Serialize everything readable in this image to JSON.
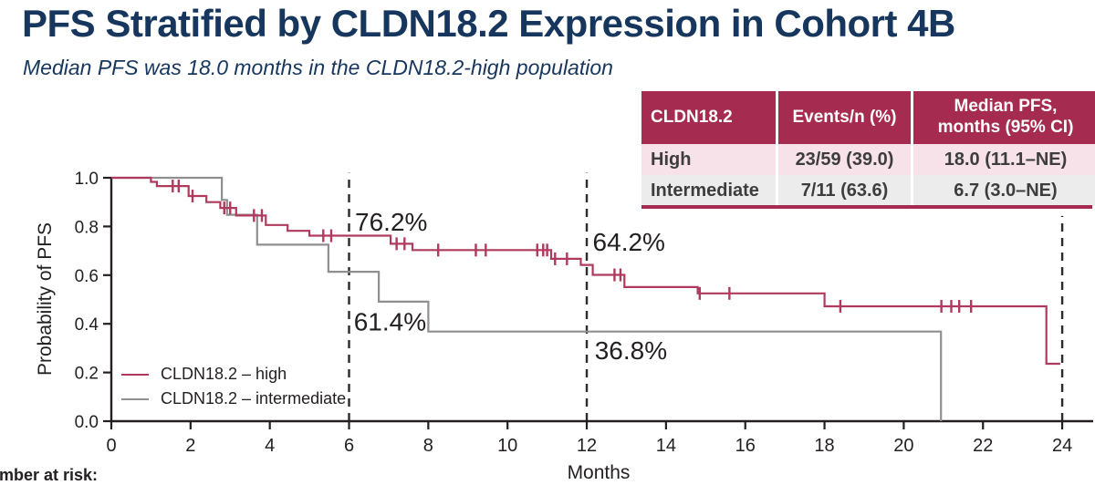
{
  "title": "PFS Stratified by CLDN18.2 Expression in Cohort 4B",
  "subtitle": "Median PFS was 18.0 months in the CLDN18.2-high population",
  "table": {
    "headers": [
      "CLDN18.2",
      "Events/n (%)",
      "Median PFS,\nmonths (95% CI)"
    ],
    "rows": [
      {
        "group": "High",
        "events_n": "23/59 (39.0)",
        "median_pfs": "18.0 (11.1–NE)"
      },
      {
        "group": "Intermediate",
        "events_n": "7/11 (63.6)",
        "median_pfs": "6.7 (3.0–NE)"
      }
    ]
  },
  "footer": {
    "number_at_risk": "Number at risk:"
  },
  "colors": {
    "title_navy": "#17365D",
    "table_header_maroon": "#A52C50",
    "row_high_pink": "#F7E2EA",
    "row_intermediate_gray": "#EDECEC",
    "curve_high": "#B03A5E",
    "curve_intermediate": "#8F8F8F",
    "axis_black": "#231F20"
  },
  "chart_data": {
    "type": "line",
    "subtype": "kaplan_meier_step",
    "title": "",
    "xlabel": "Months",
    "ylabel": "Probability of PFS",
    "xlim": [
      0,
      24
    ],
    "ylim": [
      0.0,
      1.0
    ],
    "xticks": [
      0,
      2,
      4,
      6,
      8,
      10,
      12,
      14,
      16,
      18,
      20,
      22,
      24
    ],
    "yticks": [
      0.0,
      0.2,
      0.4,
      0.6,
      0.8,
      1.0
    ],
    "grid": false,
    "legend_position": "lower-left",
    "dashed_vlines": [
      {
        "x": 6,
        "y_to": 1.02
      },
      {
        "x": 12,
        "y_to": 1.02
      },
      {
        "x": 24,
        "y_to": 0.843
      }
    ],
    "series": [
      {
        "name": "CLDN18.2 – high",
        "color": "#B03A5E",
        "points": [
          [
            0,
            1.0
          ],
          [
            1.0,
            0.983
          ],
          [
            1.15,
            0.966
          ],
          [
            1.95,
            0.925
          ],
          [
            2.4,
            0.9
          ],
          [
            2.75,
            0.876
          ],
          [
            3.15,
            0.845
          ],
          [
            3.9,
            0.806
          ],
          [
            4.45,
            0.782
          ],
          [
            5.0,
            0.762
          ],
          [
            7.05,
            0.729
          ],
          [
            7.6,
            0.703
          ],
          [
            11.1,
            0.667
          ],
          [
            11.85,
            0.642
          ],
          [
            12.15,
            0.601
          ],
          [
            12.95,
            0.551
          ],
          [
            14.8,
            0.525
          ],
          [
            18.0,
            0.472
          ],
          [
            23.6,
            0.236
          ],
          [
            23.95,
            0.236
          ]
        ],
        "censors": [
          [
            1.55,
            0.966
          ],
          [
            1.7,
            0.966
          ],
          [
            2.05,
            0.925
          ],
          [
            2.85,
            0.876
          ],
          [
            3.0,
            0.876
          ],
          [
            3.6,
            0.845
          ],
          [
            3.8,
            0.845
          ],
          [
            5.35,
            0.762
          ],
          [
            5.55,
            0.762
          ],
          [
            7.2,
            0.729
          ],
          [
            7.4,
            0.729
          ],
          [
            8.25,
            0.703
          ],
          [
            9.2,
            0.703
          ],
          [
            9.45,
            0.703
          ],
          [
            10.75,
            0.703
          ],
          [
            10.9,
            0.703
          ],
          [
            11.0,
            0.703
          ],
          [
            11.2,
            0.667
          ],
          [
            11.5,
            0.667
          ],
          [
            12.7,
            0.601
          ],
          [
            12.85,
            0.601
          ],
          [
            14.85,
            0.525
          ],
          [
            15.6,
            0.525
          ],
          [
            18.4,
            0.472
          ],
          [
            20.95,
            0.472
          ],
          [
            21.2,
            0.472
          ],
          [
            21.4,
            0.472
          ],
          [
            21.7,
            0.472
          ]
        ]
      },
      {
        "name": "CLDN18.2 – intermediate",
        "color": "#8F8F8F",
        "points": [
          [
            0,
            1.0
          ],
          [
            2.79,
            0.909
          ],
          [
            2.92,
            0.848
          ],
          [
            3.68,
            0.725
          ],
          [
            5.48,
            0.614
          ],
          [
            6.75,
            0.491
          ],
          [
            8.0,
            0.368
          ],
          [
            20.94,
            0.0
          ]
        ],
        "censors": []
      }
    ],
    "annotations": [
      {
        "text": "76.2%",
        "x": 6.15,
        "y": 0.82,
        "color": "#B03A5E",
        "series": "high",
        "at_month": 6
      },
      {
        "text": "61.4%",
        "x": 6.12,
        "y": 0.41,
        "color": "#9E9E9E",
        "series": "intermediate",
        "at_month": 6
      },
      {
        "text": "64.2%",
        "x": 12.15,
        "y": 0.737,
        "color": "#B03A5E",
        "series": "high",
        "at_month": 12
      },
      {
        "text": "36.8%",
        "x": 12.2,
        "y": 0.292,
        "color": "#9E9E9E",
        "series": "intermediate",
        "at_month": 12
      }
    ]
  }
}
